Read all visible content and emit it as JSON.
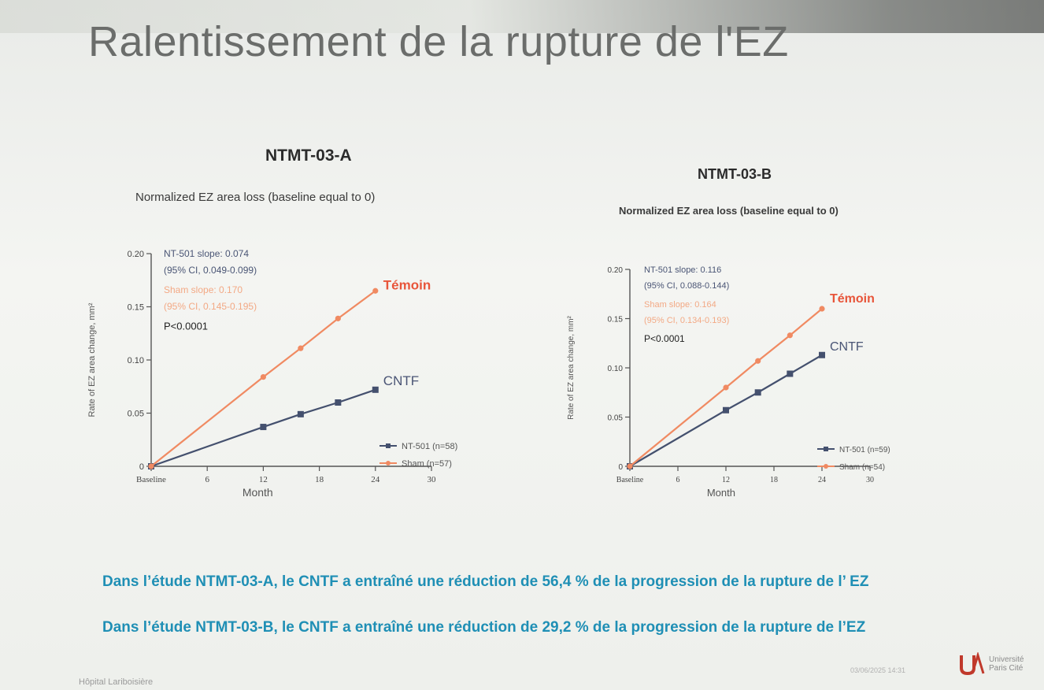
{
  "slide": {
    "title": "Ralentissement de la rupture de l'EZ",
    "summary_a": "Dans l’étude NTMT-03-A, le CNTF a entraîné une réduction de 56,4 % de la progression de la rupture de l’ EZ",
    "summary_b": "Dans l’étude NTMT-03-B, le CNTF a entraîné une réduction de 29,2 % de la progression de la rupture de l’EZ",
    "footer_left": "Hôpital Lariboisière",
    "footer_date": "03/06/2025 14:31",
    "logo_text_1": "Université",
    "logo_text_2": "Paris Cité",
    "colors": {
      "sham": "#f08a62",
      "nt501": "#44506e",
      "summary": "#1f8fb5",
      "temoin": "#e8553a"
    }
  },
  "chart_data": [
    {
      "type": "line",
      "title": "NTMT-03-A",
      "subtitle": "Normalized EZ area loss (baseline equal to 0)",
      "xlabel": "Month",
      "ylabel": "Rate of EZ area change, mm²",
      "x_ticks": [
        "Baseline",
        "6",
        "12",
        "18",
        "24",
        "30"
      ],
      "y_ticks": [
        "0",
        "0.05",
        "0.10",
        "0.15",
        "0.20"
      ],
      "xlim": [
        0,
        30
      ],
      "ylim": [
        0,
        0.2
      ],
      "series": [
        {
          "name": "NT-501 (n=58)",
          "x": [
            0,
            12,
            16,
            20,
            24
          ],
          "y": [
            0,
            0.037,
            0.049,
            0.06,
            0.072
          ]
        },
        {
          "name": "Sham (n=57)",
          "x": [
            0,
            12,
            16,
            20,
            24
          ],
          "y": [
            0,
            0.084,
            0.111,
            0.139,
            0.165
          ]
        }
      ],
      "annotations": {
        "nt501_slope": "NT-501 slope: 0.074",
        "nt501_ci": "(95% CI, 0.049-0.099)",
        "sham_slope": "Sham slope: 0.170",
        "sham_ci": "(95% CI, 0.145-0.195)",
        "p_value": "P<0.0001",
        "temoin_label": "Témoin",
        "cntf_label": "CNTF"
      }
    },
    {
      "type": "line",
      "title": "NTMT-03-B",
      "subtitle": "Normalized EZ area loss (baseline equal to 0)",
      "xlabel": "Month",
      "ylabel": "Rate of EZ area change, mm²",
      "x_ticks": [
        "Baseline",
        "6",
        "12",
        "18",
        "24",
        "30"
      ],
      "y_ticks": [
        "0",
        "0.05",
        "0.10",
        "0.15",
        "0.20"
      ],
      "xlim": [
        0,
        30
      ],
      "ylim": [
        0,
        0.2
      ],
      "series": [
        {
          "name": "NT-501 (n=59)",
          "x": [
            0,
            12,
            16,
            20,
            24
          ],
          "y": [
            0,
            0.057,
            0.075,
            0.094,
            0.113
          ]
        },
        {
          "name": "Sham (n=54)",
          "x": [
            0,
            12,
            16,
            20,
            24
          ],
          "y": [
            0,
            0.08,
            0.107,
            0.133,
            0.16
          ]
        }
      ],
      "annotations": {
        "nt501_slope": "NT-501 slope: 0.116",
        "nt501_ci": "(95% CI, 0.088-0.144)",
        "sham_slope": "Sham slope: 0.164",
        "sham_ci": "(95% CI, 0.134-0.193)",
        "p_value": "P<0.0001",
        "temoin_label": "Témoin",
        "cntf_label": "CNTF"
      }
    }
  ]
}
